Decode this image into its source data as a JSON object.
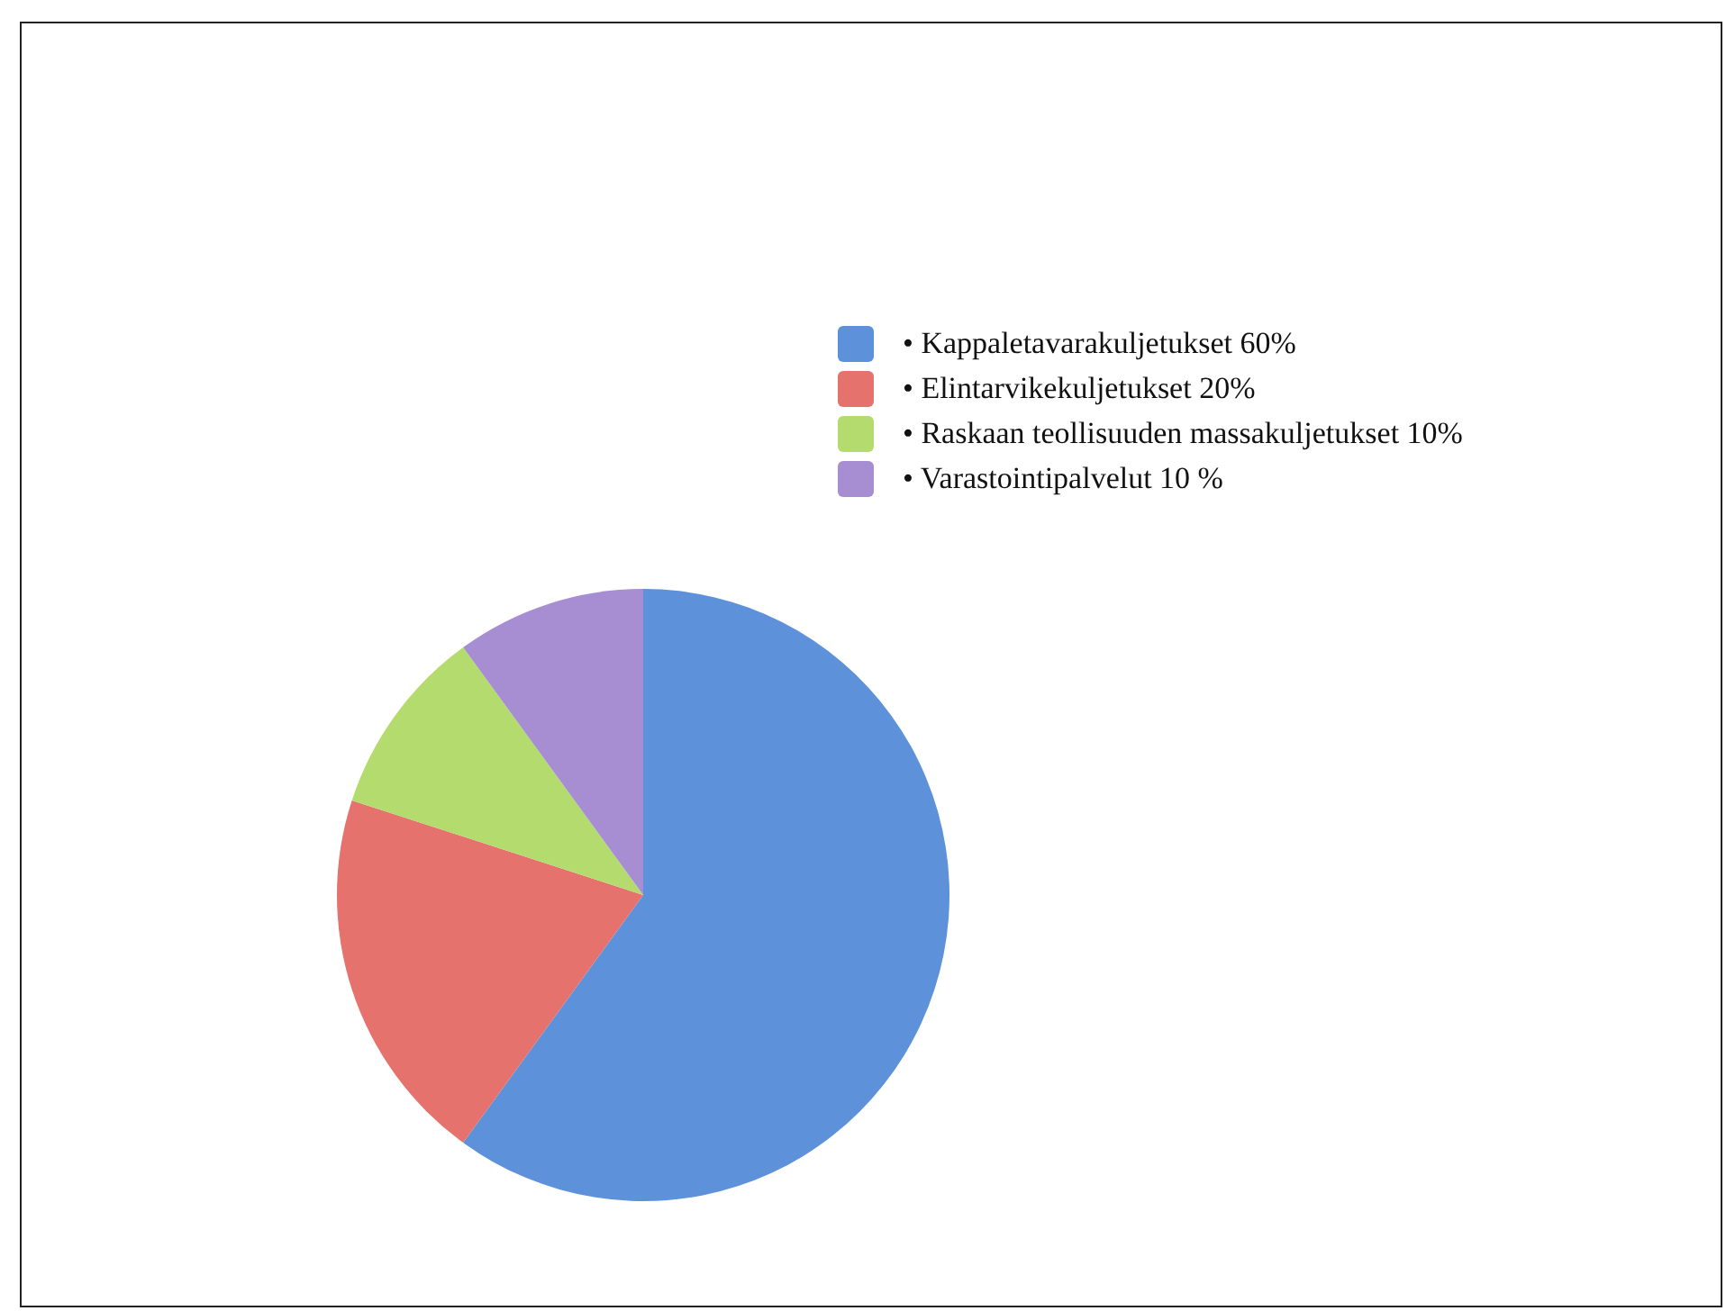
{
  "chart_data": {
    "type": "pie",
    "categories": [
      "• Kappaletavarakuljetukset 60%",
      "• Elintarvikekuljetukset 20%",
      "• Raskaan teollisuuden massakuljetukset 10%",
      "• Varastointipalvelut 10 %"
    ],
    "values": [
      60,
      20,
      10,
      10
    ],
    "colors": [
      "#5d92da",
      "#e5726c",
      "#b4db6e",
      "#a78dd2"
    ],
    "legend": "top right"
  }
}
